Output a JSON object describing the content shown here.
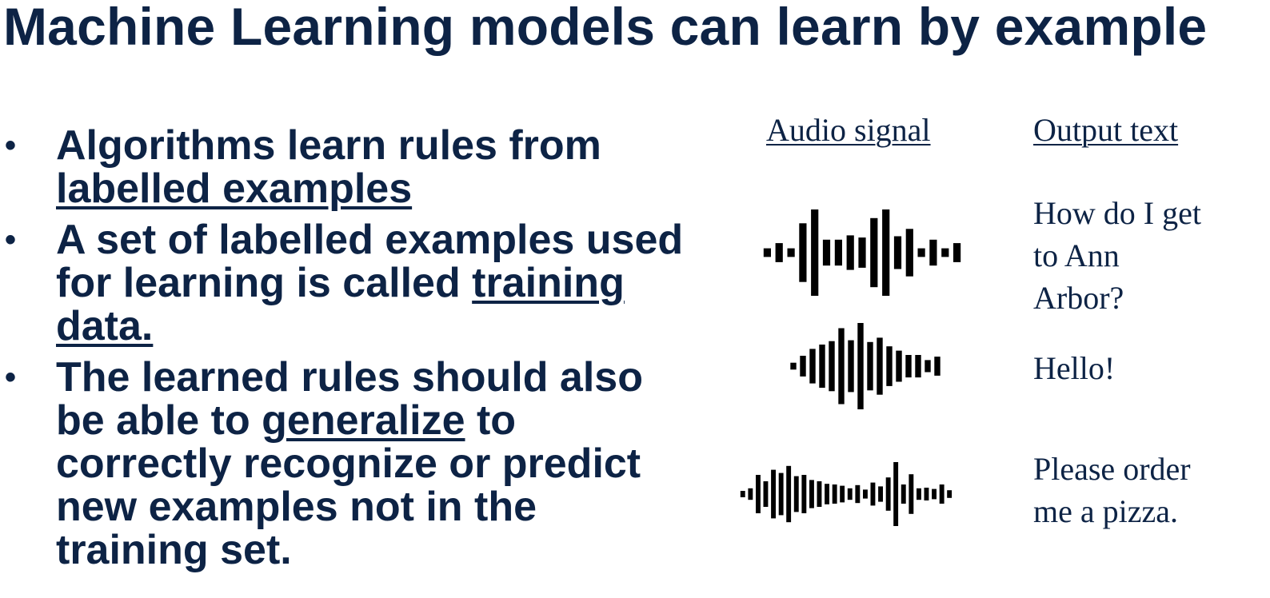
{
  "title": "Machine Learning models can learn by example",
  "bullets": [
    {
      "dot": "•",
      "line1": "Algorithms learn rules from",
      "underlined": "labelled examples"
    },
    {
      "dot": "•",
      "pre": "A set of labelled examples used for learning is called",
      "underlined": "training data."
    },
    {
      "dot": "•",
      "pre": "The learned rules should also be able to",
      "underlined": "generalize",
      "post": "to correctly recognize or predict new examples not in the training set."
    }
  ],
  "table": {
    "audio_header": "Audio signal",
    "output_header": "Output text",
    "rows": [
      {
        "wave_icon": "audio-waveform-icon",
        "output": "How do I get to Ann Arbor?",
        "bars": [
          10,
          22,
          10,
          68,
          100,
          30,
          30,
          40,
          35,
          80,
          100,
          38,
          55,
          10,
          30,
          10,
          22
        ]
      },
      {
        "wave_icon": "audio-waveform-icon",
        "output": "Hello!",
        "bars": [
          8,
          24,
          40,
          50,
          58,
          88,
          60,
          100,
          56,
          66,
          46,
          36,
          26,
          26,
          14,
          22
        ]
      },
      {
        "wave_icon": "audio-waveform-icon",
        "output": "Please order me a pizza.",
        "bars": [
          10,
          18,
          60,
          40,
          76,
          66,
          88,
          56,
          60,
          44,
          40,
          32,
          30,
          26,
          18,
          28,
          14,
          36,
          24,
          52,
          100,
          30,
          62,
          18,
          20,
          16,
          30,
          12
        ]
      }
    ]
  }
}
